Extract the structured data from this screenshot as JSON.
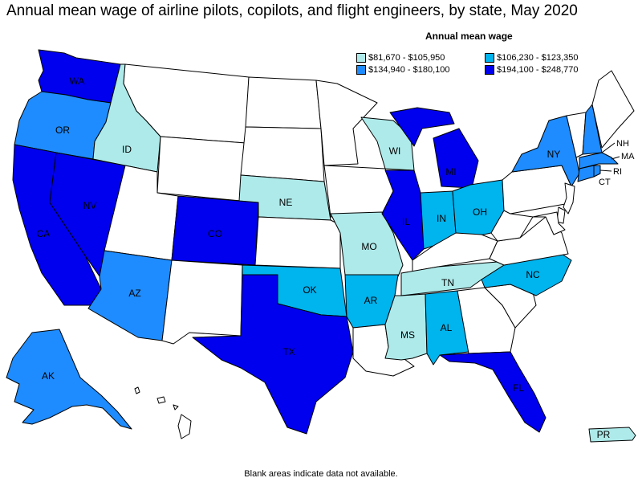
{
  "title": "Annual mean wage of airline pilots, copilots, and flight engineers, by state, May 2020",
  "legend": {
    "title": "Annual mean wage",
    "items": [
      {
        "label": "$81,670 - $105,950",
        "color": "#aeeaea"
      },
      {
        "label": "$106,230 - $123,350",
        "color": "#00b4ee"
      },
      {
        "label": "$134,940 - $180,100",
        "color": "#1e8cff"
      },
      {
        "label": "$194,100 - $248,770",
        "color": "#0000ee"
      }
    ]
  },
  "no_data_color": "#ffffff",
  "footnote": "Blank areas indicate data not available.",
  "states": {
    "WA": {
      "label": "WA",
      "tier": 3
    },
    "OR": {
      "label": "OR",
      "tier": 2
    },
    "CA": {
      "label": "CA",
      "tier": 3
    },
    "NV": {
      "label": "NV",
      "tier": 3
    },
    "ID": {
      "label": "ID",
      "tier": 0
    },
    "AZ": {
      "label": "AZ",
      "tier": 2
    },
    "CO": {
      "label": "CO",
      "tier": 3
    },
    "NE": {
      "label": "NE",
      "tier": 0
    },
    "TX": {
      "label": "TX",
      "tier": 3
    },
    "OK": {
      "label": "OK",
      "tier": 1
    },
    "MO": {
      "label": "MO",
      "tier": 0
    },
    "AR": {
      "label": "AR",
      "tier": 1
    },
    "WI": {
      "label": "WI",
      "tier": 0
    },
    "IL": {
      "label": "IL",
      "tier": 3
    },
    "MI": {
      "label": "MI",
      "tier": 3
    },
    "IN": {
      "label": "IN",
      "tier": 1
    },
    "OH": {
      "label": "OH",
      "tier": 1
    },
    "TN": {
      "label": "TN",
      "tier": 0
    },
    "MS": {
      "label": "MS",
      "tier": 0
    },
    "AL": {
      "label": "AL",
      "tier": 1
    },
    "FL": {
      "label": "FL",
      "tier": 3
    },
    "NC": {
      "label": "NC",
      "tier": 1
    },
    "NY": {
      "label": "NY",
      "tier": 2
    },
    "NH": {
      "label": "NH",
      "tier": 2
    },
    "MA": {
      "label": "MA",
      "tier": 2
    },
    "RI": {
      "label": "RI",
      "tier": 2
    },
    "CT": {
      "label": "CT",
      "tier": 2
    },
    "AK": {
      "label": "AK",
      "tier": 2
    },
    "PR": {
      "label": "PR",
      "tier": 0
    },
    "MT": {
      "label": "",
      "tier": null
    },
    "WY": {
      "label": "",
      "tier": null
    },
    "UT": {
      "label": "",
      "tier": null
    },
    "NM": {
      "label": "",
      "tier": null
    },
    "ND": {
      "label": "",
      "tier": null
    },
    "SD": {
      "label": "",
      "tier": null
    },
    "KS": {
      "label": "",
      "tier": null
    },
    "MN": {
      "label": "",
      "tier": null
    },
    "IA": {
      "label": "",
      "tier": null
    },
    "LA": {
      "label": "",
      "tier": null
    },
    "KY": {
      "label": "",
      "tier": null
    },
    "GA": {
      "label": "",
      "tier": null
    },
    "SC": {
      "label": "",
      "tier": null
    },
    "VA": {
      "label": "",
      "tier": null
    },
    "WV": {
      "label": "",
      "tier": null
    },
    "PA": {
      "label": "",
      "tier": null
    },
    "ME": {
      "label": "",
      "tier": null
    },
    "VT": {
      "label": "",
      "tier": null
    },
    "NJ": {
      "label": "",
      "tier": null
    },
    "DE": {
      "label": "",
      "tier": null
    },
    "MD": {
      "label": "",
      "tier": null
    },
    "HI": {
      "label": "",
      "tier": null
    }
  }
}
